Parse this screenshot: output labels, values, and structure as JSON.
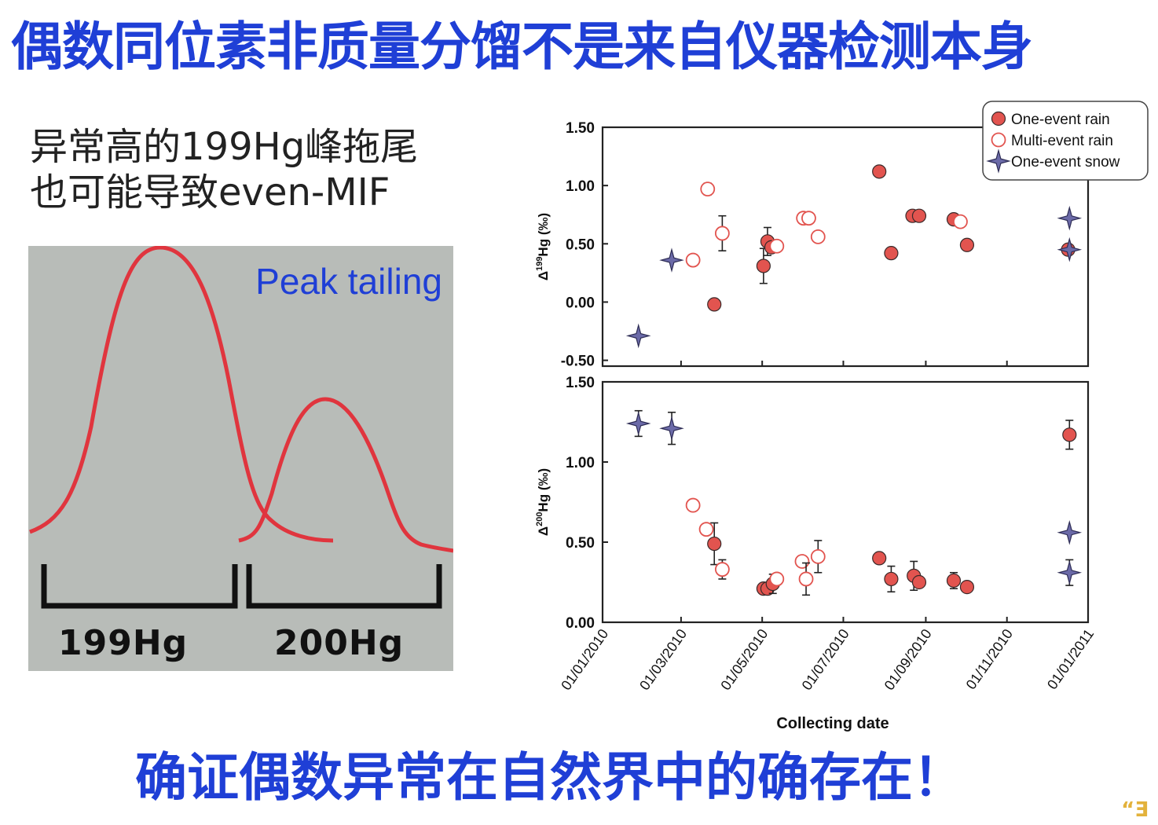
{
  "slide": {
    "title": "偶数同位素非质量分馏不是来自仪器检测本身",
    "note_line1": "异常高的199Hg峰拖尾",
    "note_line2": "也可能导致even-MIF",
    "conclusion": "确证偶数异常在自然界中的确存在！",
    "corner_mark": "“Ǝ"
  },
  "peak_figure": {
    "label": "Peak tailing",
    "mass1": "199Hg",
    "mass2": "200Hg",
    "colors": {
      "curve": "#e0353e",
      "background": "#b8bcb8",
      "label": "#1f3fd6"
    }
  },
  "chart_data": [
    {
      "type": "scatter",
      "panel": "top",
      "ylabel": "Δ199Hg (‰)",
      "ylim": [
        -0.55,
        1.5
      ],
      "yticks": [
        "1.50",
        "1.00",
        "0.50",
        "0.00",
        "-0.50"
      ],
      "xaxis": "date",
      "xlim": [
        "2010-01-01",
        "2011-01-01"
      ],
      "legend": {
        "placement": "top-right",
        "entries": [
          "One-event rain",
          "Multi-event rain",
          "One-event snow"
        ]
      },
      "series": [
        {
          "name": "One-event rain",
          "color": "#e2544f",
          "points": [
            {
              "x": "2010-03-26",
              "y": -0.02
            },
            {
              "x": "2010-05-02",
              "y": 0.31,
              "err": 0.15
            },
            {
              "x": "2010-05-05",
              "y": 0.52,
              "err": 0.12
            },
            {
              "x": "2010-05-08",
              "y": 0.47
            },
            {
              "x": "2010-07-28",
              "y": 1.12
            },
            {
              "x": "2010-08-06",
              "y": 0.42
            },
            {
              "x": "2010-08-22",
              "y": 0.74
            },
            {
              "x": "2010-08-27",
              "y": 0.74
            },
            {
              "x": "2010-09-22",
              "y": 0.71
            },
            {
              "x": "2010-10-02",
              "y": 0.49
            },
            {
              "x": "2010-12-17",
              "y": 0.45
            }
          ]
        },
        {
          "name": "Multi-event rain",
          "color": "#e2544f",
          "points": [
            {
              "x": "2010-03-10",
              "y": 0.36
            },
            {
              "x": "2010-03-21",
              "y": 0.97,
              "err": 0.05
            },
            {
              "x": "2010-04-01",
              "y": 0.59,
              "err": 0.15
            },
            {
              "x": "2010-05-12",
              "y": 0.48
            },
            {
              "x": "2010-06-01",
              "y": 0.72
            },
            {
              "x": "2010-06-05",
              "y": 0.72
            },
            {
              "x": "2010-06-12",
              "y": 0.56
            },
            {
              "x": "2010-09-27",
              "y": 0.69
            }
          ]
        },
        {
          "name": "One-event snow",
          "color": "#6b6aa8",
          "points": [
            {
              "x": "2010-01-28",
              "y": -0.29
            },
            {
              "x": "2010-02-22",
              "y": 0.36
            },
            {
              "x": "2010-12-18",
              "y": 0.72
            },
            {
              "x": "2010-12-18",
              "y": 0.45
            }
          ]
        }
      ]
    },
    {
      "type": "scatter",
      "panel": "bottom",
      "ylabel": "Δ200Hg (‰)",
      "ylim": [
        0,
        1.5
      ],
      "yticks": [
        "1.50",
        "1.00",
        "0.50",
        "0.00"
      ],
      "xaxis": "date",
      "xlim": [
        "2010-01-01",
        "2011-01-01"
      ],
      "xticks": [
        "01/01/2010",
        "01/03/2010",
        "01/05/2010",
        "01/07/2010",
        "01/09/2010",
        "01/11/2010",
        "01/01/2011"
      ],
      "xlabel": "Collecting date",
      "series": [
        {
          "name": "One-event rain",
          "color": "#e2544f",
          "points": [
            {
              "x": "2010-03-26",
              "y": 0.49,
              "err": 0.13
            },
            {
              "x": "2010-05-02",
              "y": 0.21
            },
            {
              "x": "2010-05-05",
              "y": 0.21
            },
            {
              "x": "2010-05-09",
              "y": 0.24,
              "err": 0.06
            },
            {
              "x": "2010-07-28",
              "y": 0.4
            },
            {
              "x": "2010-08-06",
              "y": 0.27,
              "err": 0.08
            },
            {
              "x": "2010-08-23",
              "y": 0.29,
              "err": 0.09
            },
            {
              "x": "2010-08-27",
              "y": 0.25
            },
            {
              "x": "2010-09-22",
              "y": 0.26,
              "err": 0.05
            },
            {
              "x": "2010-10-02",
              "y": 0.22
            },
            {
              "x": "2010-12-18",
              "y": 1.17,
              "err": 0.09
            }
          ]
        },
        {
          "name": "Multi-event rain",
          "color": "#e2544f",
          "points": [
            {
              "x": "2010-03-10",
              "y": 0.73
            },
            {
              "x": "2010-03-20",
              "y": 0.58
            },
            {
              "x": "2010-04-01",
              "y": 0.33,
              "err": 0.06
            },
            {
              "x": "2010-05-12",
              "y": 0.27
            },
            {
              "x": "2010-05-31",
              "y": 0.38
            },
            {
              "x": "2010-06-03",
              "y": 0.27,
              "err": 0.1
            },
            {
              "x": "2010-06-12",
              "y": 0.41,
              "err": 0.1
            }
          ]
        },
        {
          "name": "One-event snow",
          "color": "#6b6aa8",
          "points": [
            {
              "x": "2010-01-28",
              "y": 1.24,
              "err": 0.08
            },
            {
              "x": "2010-02-22",
              "y": 1.21,
              "err": 0.1
            },
            {
              "x": "2010-12-18",
              "y": 0.56
            },
            {
              "x": "2010-12-18",
              "y": 0.31,
              "err": 0.08
            }
          ]
        }
      ]
    }
  ]
}
